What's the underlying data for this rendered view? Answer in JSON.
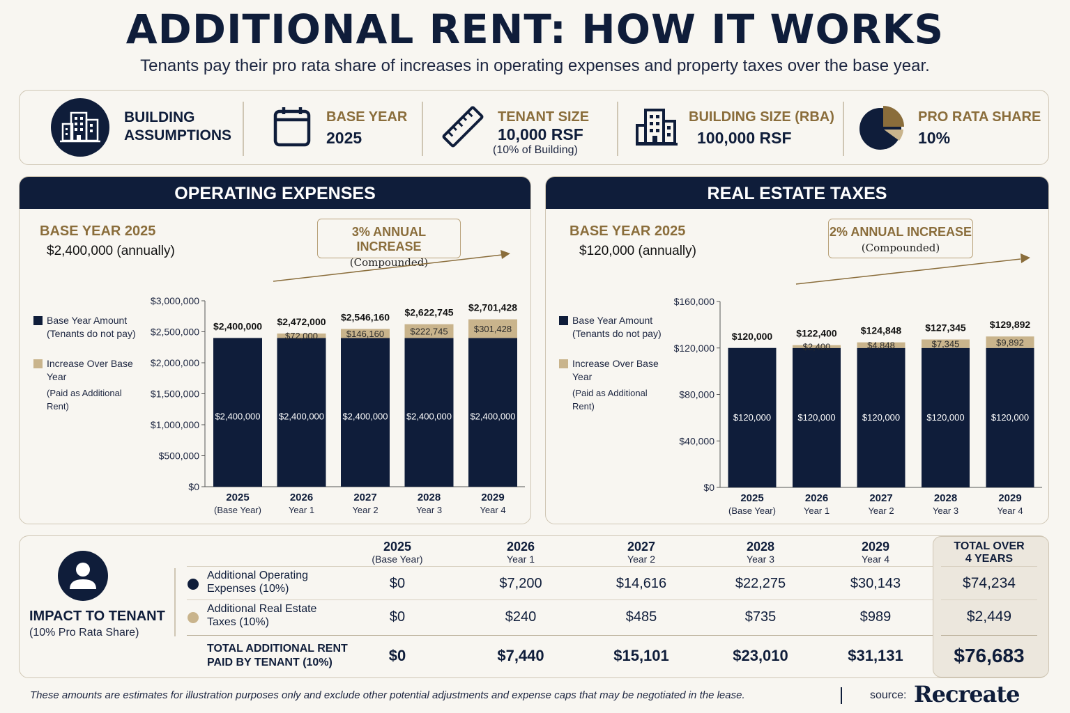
{
  "header": {
    "title": "ADDITIONAL RENT: HOW IT WORKS",
    "subtitle": "Tenants pay their pro rata share of increases in operating expenses and property taxes over the base year."
  },
  "assumptions": {
    "heading_line1": "BUILDING",
    "heading_line2": "ASSUMPTIONS",
    "base_year_label": "BASE YEAR",
    "base_year_value": "2025",
    "tenant_size_label": "TENANT SIZE",
    "tenant_size_value": "10,000 RSF",
    "tenant_size_note": "(10% of Building)",
    "building_size_label": "BUILDING SIZE (RBA)",
    "building_size_value": "100,000 RSF",
    "pro_rata_label": "PRO RATA SHARE",
    "pro_rata_value": "10%",
    "pro_rata_fraction": 0.1
  },
  "colors": {
    "navy": "#0f1d3a",
    "tan": "#c9b48c",
    "gold_text": "#8a6d3b"
  },
  "chart_data": [
    {
      "type": "bar",
      "stacked": true,
      "title": "OPERATING EXPENSES",
      "base_label": "BASE YEAR 2025",
      "base_value": "$2,400,000 (annually)",
      "increase_label": "3% ANNUAL INCREASE",
      "increase_note": "(Compounded)",
      "categories": [
        "2025",
        "2026",
        "2027",
        "2028",
        "2029"
      ],
      "category_sublabels": [
        "(Base Year)",
        "Year 1",
        "Year 2",
        "Year 3",
        "Year 4"
      ],
      "series": [
        {
          "name": "Base Year Amount",
          "note": "(Tenants do not pay)",
          "values": [
            2400000,
            2400000,
            2400000,
            2400000,
            2400000
          ],
          "labels": [
            "$2,400,000",
            "$2,400,000",
            "$2,400,000",
            "$2,400,000",
            "$2,400,000"
          ]
        },
        {
          "name": "Increase Over Base Year",
          "note": "(Paid as Additional Rent)",
          "values": [
            0,
            72000,
            146160,
            222745,
            301428
          ],
          "labels": [
            "",
            "$72,000",
            "$146,160",
            "$222,745",
            "$301,428"
          ]
        }
      ],
      "total_labels": [
        "$2,400,000",
        "$2,472,000",
        "$2,546,160",
        "$2,622,745",
        "$2,701,428"
      ],
      "ylim": [
        0,
        3000000
      ],
      "yticks": [
        0,
        500000,
        1000000,
        1500000,
        2000000,
        2500000,
        3000000
      ],
      "ytick_labels": [
        "$0",
        "$500,000",
        "$1,000,000",
        "$1,500,000",
        "$2,000,000",
        "$2,500,000",
        "$3,000,000"
      ],
      "legend_position": "left"
    },
    {
      "type": "bar",
      "stacked": true,
      "title": "REAL ESTATE TAXES",
      "base_label": "BASE YEAR 2025",
      "base_value": "$120,000 (annually)",
      "increase_label": "2% ANNUAL INCREASE",
      "increase_note": "(Compounded)",
      "categories": [
        "2025",
        "2026",
        "2027",
        "2028",
        "2029"
      ],
      "category_sublabels": [
        "(Base Year)",
        "Year 1",
        "Year 2",
        "Year 3",
        "Year 4"
      ],
      "series": [
        {
          "name": "Base Year Amount",
          "note": "(Tenants do not pay)",
          "values": [
            120000,
            120000,
            120000,
            120000,
            120000
          ],
          "labels": [
            "$120,000",
            "$120,000",
            "$120,000",
            "$120,000",
            "$120,000"
          ]
        },
        {
          "name": "Increase Over Base Year",
          "note": "(Paid as Additional Rent)",
          "values": [
            0,
            2400,
            4848,
            7345,
            9892
          ],
          "labels": [
            "",
            "$2,400",
            "$4,848",
            "$7,345",
            "$9,892"
          ]
        }
      ],
      "total_labels": [
        "$120,000",
        "$122,400",
        "$124,848",
        "$127,345",
        "$129,892"
      ],
      "ylim": [
        0,
        160000
      ],
      "yticks": [
        0,
        40000,
        80000,
        120000,
        160000
      ],
      "ytick_labels": [
        "$0",
        "$40,000",
        "$80,000",
        "$120,000",
        "$160,000"
      ],
      "legend_position": "left"
    }
  ],
  "impact": {
    "title": "IMPACT TO TENANT",
    "subtitle": "(10% Pro Rata Share)",
    "columns": [
      {
        "year": "2025",
        "sub": "(Base Year)"
      },
      {
        "year": "2026",
        "sub": "Year 1"
      },
      {
        "year": "2027",
        "sub": "Year 2"
      },
      {
        "year": "2028",
        "sub": "Year 3"
      },
      {
        "year": "2029",
        "sub": "Year 4"
      }
    ],
    "total_header_line1": "TOTAL OVER",
    "total_header_line2": "4 YEARS",
    "rows": [
      {
        "label_line1": "Additional Operating",
        "label_line2": "Expenses (10%)",
        "values": [
          "$0",
          "$7,200",
          "$14,616",
          "$22,275",
          "$30,143"
        ],
        "total": "$74,234"
      },
      {
        "label_line1": "Additional Real Estate",
        "label_line2": "Taxes (10%)",
        "values": [
          "$0",
          "$240",
          "$485",
          "$735",
          "$989"
        ],
        "total": "$2,449"
      }
    ],
    "total_row": {
      "label_line1": "TOTAL ADDITIONAL RENT",
      "label_line2": "PAID BY TENANT (10%)",
      "values": [
        "$0",
        "$7,440",
        "$15,101",
        "$23,010",
        "$31,131"
      ],
      "total": "$76,683"
    }
  },
  "footer": {
    "disclaimer": "These amounts are estimates for illustration purposes only and exclude other potential adjustments and expense caps that may be negotiated in the lease.",
    "source_label": "source:",
    "source_name": "Recreate"
  }
}
